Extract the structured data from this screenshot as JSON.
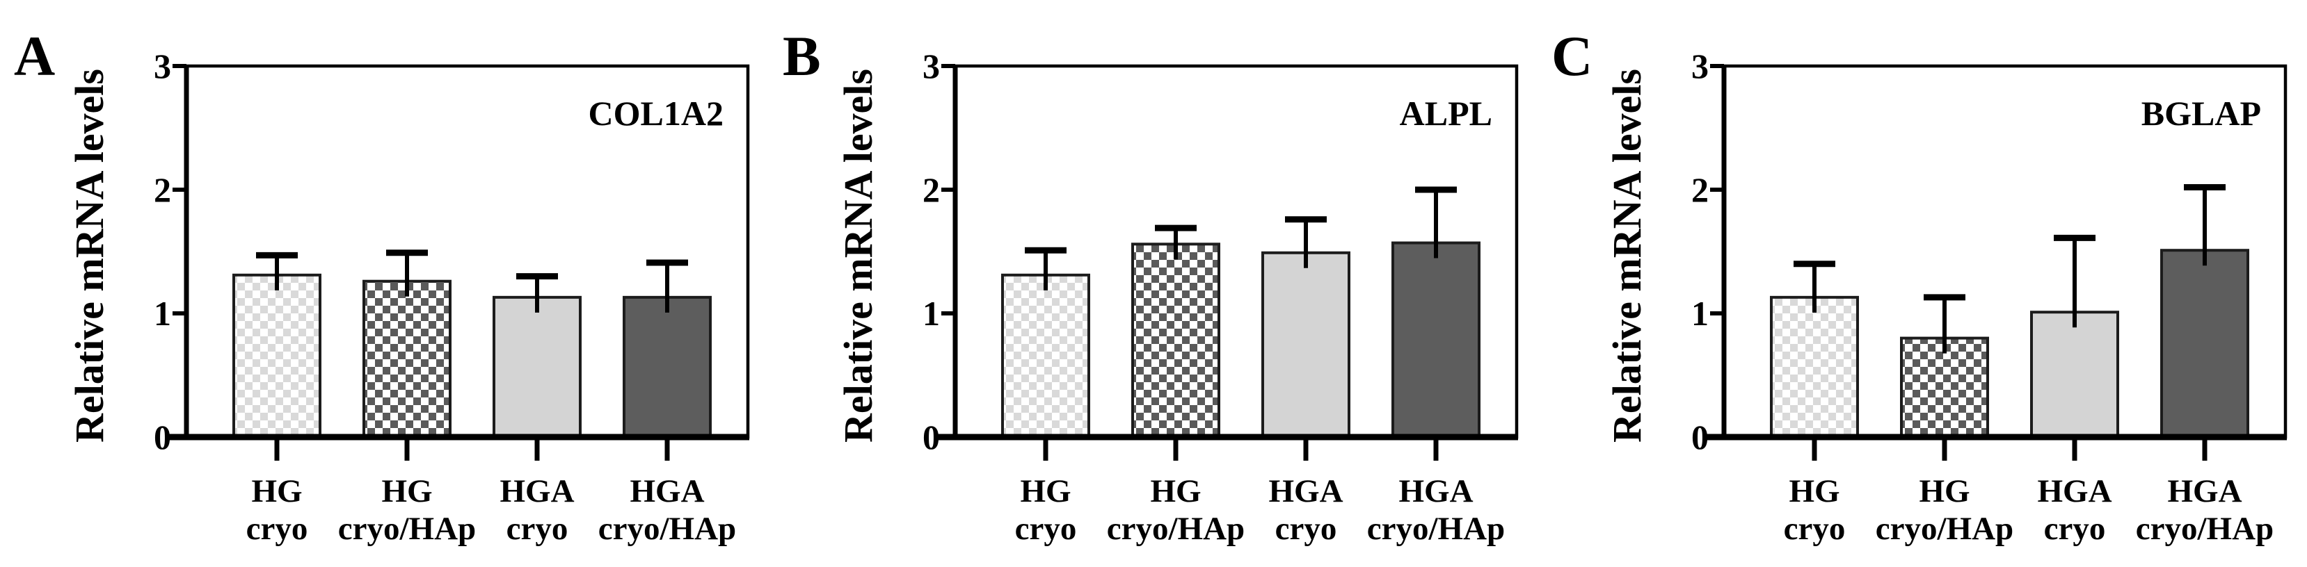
{
  "figure": {
    "background": "#ffffff",
    "description": "Three-panel bar chart figure of relative mRNA levels (qPCR) for four scaffold conditions"
  },
  "styles": {
    "checker_light_color": "#d9d9d9",
    "checker_dark_color": "#5a5a5a",
    "solid_light_color": "#d4d4d4",
    "solid_dark_color": "#5d5d5d",
    "bar_outline_color": "#1c1c1c",
    "axis_color": "#000000",
    "text_color": "#000000"
  },
  "chart_data": [
    {
      "type": "bar",
      "panel_letter": "A",
      "title": "COL1A2",
      "ylabel": "Relative mRNA levels",
      "ylim": [
        0,
        3
      ],
      "yticks": [
        0,
        1,
        2,
        3
      ],
      "grid": false,
      "legend": "none",
      "categories_line1": [
        "HG",
        "HG",
        "HGA",
        "HGA"
      ],
      "categories_line2": [
        "cryo",
        "cryo/HAp",
        "cryo",
        "cryo/HAp"
      ],
      "values": [
        1.31,
        1.26,
        1.13,
        1.13
      ],
      "errors_upper": [
        0.16,
        0.23,
        0.17,
        0.28
      ],
      "bar_styles": [
        "checker-light",
        "checker-dark",
        "solid-light",
        "solid-dark"
      ]
    },
    {
      "type": "bar",
      "panel_letter": "B",
      "title": "ALPL",
      "ylabel": "Relative mRNA levels",
      "ylim": [
        0,
        3
      ],
      "yticks": [
        0,
        1,
        2,
        3
      ],
      "grid": false,
      "legend": "none",
      "categories_line1": [
        "HG",
        "HG",
        "HGA",
        "HGA"
      ],
      "categories_line2": [
        "cryo",
        "cryo/HAp",
        "cryo",
        "cryo/HAp"
      ],
      "values": [
        1.31,
        1.56,
        1.49,
        1.57
      ],
      "errors_upper": [
        0.2,
        0.13,
        0.27,
        0.43
      ],
      "bar_styles": [
        "checker-light",
        "checker-dark",
        "solid-light",
        "solid-dark"
      ]
    },
    {
      "type": "bar",
      "panel_letter": "C",
      "title": "BGLAP",
      "ylabel": "Relative mRNA levels",
      "ylim": [
        0,
        3
      ],
      "yticks": [
        0,
        1,
        2,
        3
      ],
      "grid": false,
      "legend": "none",
      "categories_line1": [
        "HG",
        "HG",
        "HGA",
        "HGA"
      ],
      "categories_line2": [
        "cryo",
        "cryo/HAp",
        "cryo",
        "cryo/HAp"
      ],
      "values": [
        1.13,
        0.8,
        1.01,
        1.51
      ],
      "errors_upper": [
        0.27,
        0.33,
        0.6,
        0.51
      ],
      "bar_styles": [
        "checker-light",
        "checker-dark",
        "solid-light",
        "solid-dark"
      ]
    }
  ]
}
